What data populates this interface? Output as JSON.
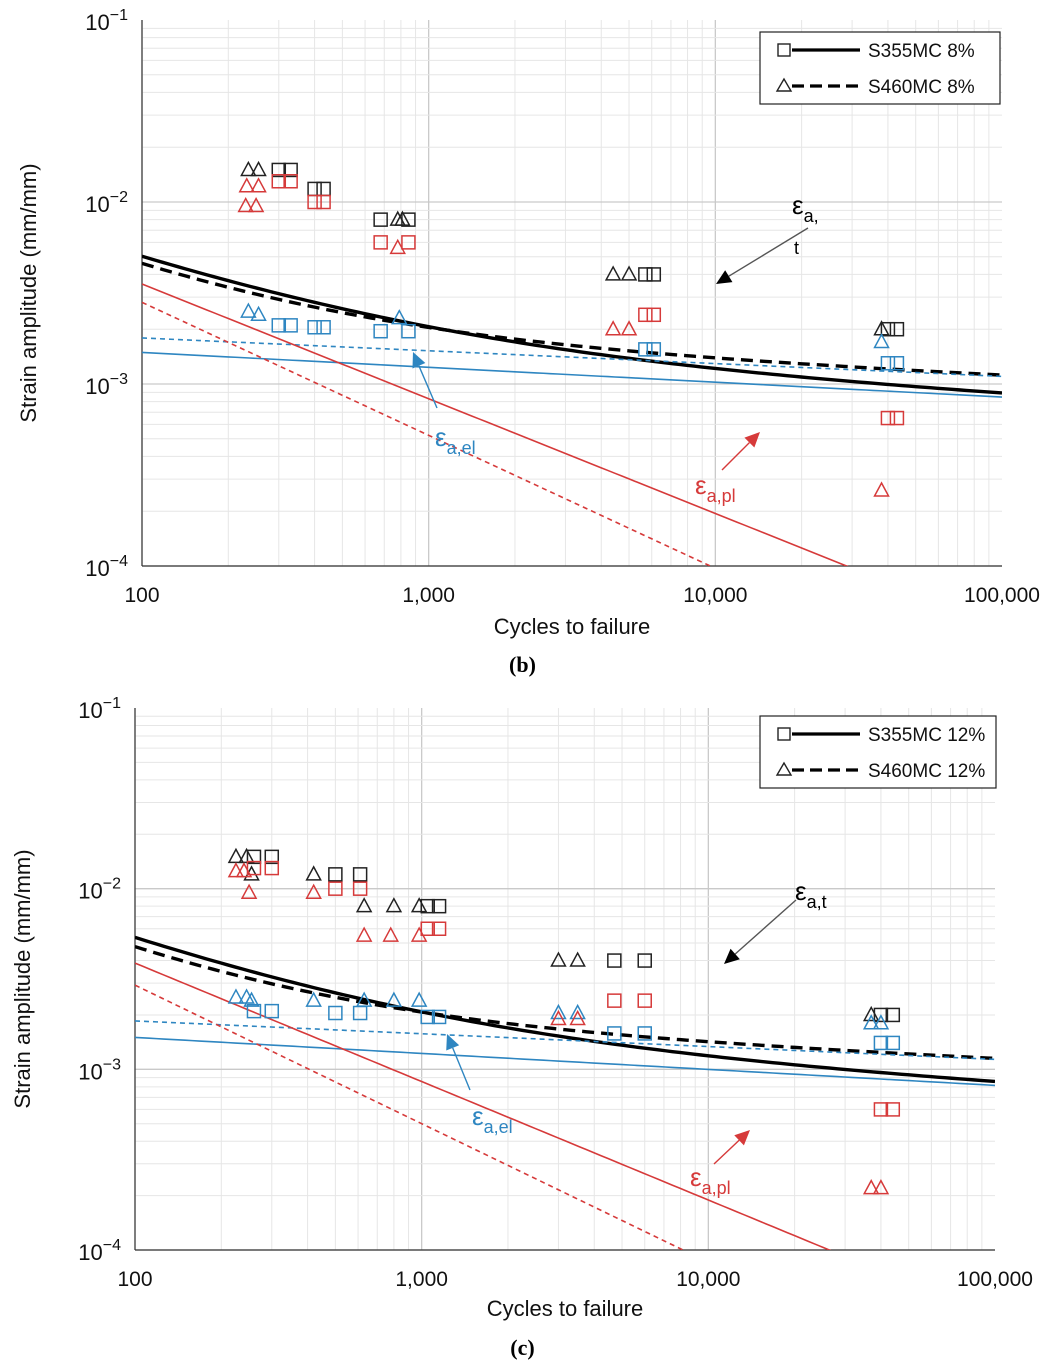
{
  "chart_data": [
    {
      "type": "scatter",
      "panel": "b",
      "caption": "(b)",
      "xlabel": "Cycles to failure",
      "ylabel": "Strain amplitude (mm/mm)",
      "xscale": "log",
      "yscale": "log",
      "xlim": [
        100,
        100000
      ],
      "ylim": [
        0.0001,
        0.1
      ],
      "x_ticks": [
        100,
        1000,
        10000,
        100000
      ],
      "x_tick_labels": [
        "100",
        "1,000",
        "10,000",
        "100,000"
      ],
      "y_ticks": [
        0.1,
        0.01,
        0.001,
        0.0001
      ],
      "y_tick_labels": [
        [
          "10",
          "−1"
        ],
        [
          "10",
          "−2"
        ],
        [
          "10",
          "−3"
        ],
        [
          "10",
          "−4"
        ]
      ],
      "grid": true,
      "legend_position": "top-right",
      "legend": [
        {
          "label": "S355MC 8%",
          "marker": "square",
          "line": "solid"
        },
        {
          "label": "S460MC 8%",
          "marker": "triangle",
          "line": "dashed"
        }
      ],
      "annotations": {
        "total": {
          "base": "ε",
          "sub": "a,",
          "sub2": "t"
        },
        "elastic": {
          "base": "ε",
          "sub": "a,el"
        },
        "plastic": {
          "base": "ε",
          "sub": "a,pl"
        }
      },
      "curves": [
        {
          "group": "total",
          "material": "S355MC 8%",
          "style": "solid",
          "color": "#000000",
          "sf": 0.0023,
          "b": -0.0818,
          "ef": 0.1,
          "c": -0.6304
        },
        {
          "group": "total",
          "material": "S460MC 8%",
          "style": "dashed",
          "color": "#000000",
          "sf": 0.0026,
          "b": -0.0704,
          "ef": 0.135,
          "c": -0.7308
        },
        {
          "group": "elastic",
          "material": "S355MC 8%",
          "style": "solid",
          "color": "#2e86c1",
          "sf": 0.0023,
          "b": -0.0818
        },
        {
          "group": "elastic",
          "material": "S460MC 8%",
          "style": "dashed",
          "color": "#2e86c1",
          "sf": 0.0026,
          "b": -0.0704
        },
        {
          "group": "plastic",
          "material": "S355MC 8%",
          "style": "solid",
          "color": "#d63a3a",
          "ef": 0.1,
          "c": -0.6304
        },
        {
          "group": "plastic",
          "material": "S460MC 8%",
          "style": "dashed",
          "color": "#d63a3a",
          "ef": 0.135,
          "c": -0.7308
        }
      ],
      "points": [
        {
          "group": "total",
          "material": "S355MC 8%",
          "marker": "square",
          "color": "#222222",
          "x": [
            300,
            330,
            400,
            430,
            680,
            850,
            5700,
            6100,
            40000,
            43000
          ],
          "y": [
            0.015,
            0.015,
            0.0118,
            0.0118,
            0.008,
            0.008,
            0.004,
            0.004,
            0.002,
            0.002
          ]
        },
        {
          "group": "total",
          "material": "S460MC 8%",
          "marker": "triangle",
          "color": "#222222",
          "x": [
            235,
            255,
            780,
            810,
            4400,
            5000,
            38000
          ],
          "y": [
            0.015,
            0.015,
            0.008,
            0.008,
            0.004,
            0.004,
            0.002
          ]
        },
        {
          "group": "elastic",
          "material": "S355MC 8%",
          "marker": "square",
          "color": "#2e86c1",
          "x": [
            300,
            330,
            400,
            430,
            680,
            850,
            5700,
            6100,
            40000,
            43000
          ],
          "y": [
            0.0021,
            0.0021,
            0.00205,
            0.00205,
            0.00195,
            0.00195,
            0.00155,
            0.00155,
            0.0013,
            0.0013
          ]
        },
        {
          "group": "elastic",
          "material": "S460MC 8%",
          "marker": "triangle",
          "color": "#2e86c1",
          "x": [
            235,
            255,
            790,
            38000
          ],
          "y": [
            0.0025,
            0.0024,
            0.0023,
            0.0017
          ]
        },
        {
          "group": "plastic",
          "material": "S355MC 8%",
          "marker": "square",
          "color": "#d63a3a",
          "x": [
            300,
            330,
            400,
            430,
            680,
            850,
            5700,
            6100,
            40000,
            43000
          ],
          "y": [
            0.013,
            0.013,
            0.01,
            0.01,
            0.006,
            0.006,
            0.0024,
            0.0024,
            0.00065,
            0.00065
          ]
        },
        {
          "group": "plastic",
          "material": "S460MC 8%",
          "marker": "triangle",
          "color": "#d63a3a",
          "x": [
            230,
            250,
            232,
            255,
            780,
            4400,
            5000,
            38000
          ],
          "y": [
            0.0095,
            0.0095,
            0.0122,
            0.0122,
            0.0056,
            0.002,
            0.002,
            0.00026
          ]
        }
      ]
    },
    {
      "type": "scatter",
      "panel": "c",
      "caption": "(c)",
      "xlabel": "Cycles to failure",
      "ylabel": "Strain amplitude (mm/mm)",
      "xscale": "log",
      "yscale": "log",
      "xlim": [
        100,
        100000
      ],
      "ylim": [
        0.0001,
        0.1
      ],
      "x_ticks": [
        100,
        1000,
        10000,
        100000
      ],
      "x_tick_labels": [
        "100",
        "1,000",
        "10,000",
        "100,000"
      ],
      "y_ticks": [
        0.1,
        0.01,
        0.001,
        0.0001
      ],
      "y_tick_labels": [
        [
          "10",
          "−1"
        ],
        [
          "10",
          "−2"
        ],
        [
          "10",
          "−3"
        ],
        [
          "10",
          "−4"
        ]
      ],
      "grid": true,
      "legend_position": "top-right",
      "legend": [
        {
          "label": "S355MC 12%",
          "marker": "square",
          "line": "solid"
        },
        {
          "label": "S460MC 12%",
          "marker": "triangle",
          "line": "dashed"
        }
      ],
      "annotations": {
        "total": {
          "base": "ε",
          "sub": "a,t",
          "sub2": ""
        },
        "elastic": {
          "base": "ε",
          "sub": "a,el"
        },
        "plastic": {
          "base": "ε",
          "sub": "a,pl"
        }
      },
      "curves": [
        {
          "group": "total",
          "material": "S355MC 12%",
          "style": "solid",
          "color": "#000000",
          "sf": 0.0024,
          "b": -0.0885,
          "ef": 0.125,
          "c": -0.6557
        },
        {
          "group": "total",
          "material": "S460MC 12%",
          "style": "dashed",
          "color": "#000000",
          "sf": 0.0027,
          "b": -0.071,
          "ef": 0.17,
          "c": -0.7668
        },
        {
          "group": "elastic",
          "material": "S355MC 12%",
          "style": "solid",
          "color": "#2e86c1",
          "sf": 0.0024,
          "b": -0.0885
        },
        {
          "group": "elastic",
          "material": "S460MC 12%",
          "style": "dashed",
          "color": "#2e86c1",
          "sf": 0.0027,
          "b": -0.071
        },
        {
          "group": "plastic",
          "material": "S355MC 12%",
          "style": "solid",
          "color": "#d63a3a",
          "ef": 0.125,
          "c": -0.6557
        },
        {
          "group": "plastic",
          "material": "S460MC 12%",
          "style": "dashed",
          "color": "#d63a3a",
          "ef": 0.17,
          "c": -0.7668
        }
      ],
      "points": [
        {
          "group": "total",
          "material": "S355MC 12%",
          "marker": "square",
          "color": "#222222",
          "x": [
            260,
            300,
            500,
            610,
            1050,
            1150,
            4700,
            6000,
            40000,
            44000
          ],
          "y": [
            0.015,
            0.015,
            0.012,
            0.012,
            0.008,
            0.008,
            0.004,
            0.004,
            0.002,
            0.002
          ]
        },
        {
          "group": "total",
          "material": "S460MC 12%",
          "marker": "triangle",
          "color": "#222222",
          "x": [
            225,
            245,
            255,
            420,
            630,
            800,
            980,
            3000,
            3500,
            37000
          ],
          "y": [
            0.015,
            0.015,
            0.012,
            0.012,
            0.008,
            0.008,
            0.008,
            0.004,
            0.004,
            0.002
          ]
        },
        {
          "group": "elastic",
          "material": "S355MC 12%",
          "marker": "square",
          "color": "#2e86c1",
          "x": [
            260,
            300,
            500,
            610,
            1050,
            1150,
            4700,
            6000,
            40000,
            44000
          ],
          "y": [
            0.0021,
            0.0021,
            0.00205,
            0.00205,
            0.00195,
            0.00195,
            0.00158,
            0.00158,
            0.0014,
            0.0014
          ]
        },
        {
          "group": "elastic",
          "material": "S460MC 12%",
          "marker": "triangle",
          "color": "#2e86c1",
          "x": [
            225,
            245,
            255,
            420,
            630,
            800,
            980,
            3000,
            3500,
            37000,
            40000
          ],
          "y": [
            0.0025,
            0.0025,
            0.0024,
            0.0024,
            0.0024,
            0.0024,
            0.0024,
            0.00205,
            0.00205,
            0.0018,
            0.0018
          ]
        },
        {
          "group": "plastic",
          "material": "S355MC 12%",
          "marker": "square",
          "color": "#d63a3a",
          "x": [
            260,
            300,
            500,
            610,
            1050,
            1150,
            4700,
            6000,
            40000,
            44000
          ],
          "y": [
            0.013,
            0.013,
            0.01,
            0.01,
            0.006,
            0.006,
            0.0024,
            0.0024,
            0.0006,
            0.0006
          ]
        },
        {
          "group": "plastic",
          "material": "S460MC 12%",
          "marker": "triangle",
          "color": "#d63a3a",
          "x": [
            225,
            240,
            250,
            420,
            630,
            780,
            980,
            3000,
            3500,
            37000,
            40000
          ],
          "y": [
            0.0125,
            0.0125,
            0.0095,
            0.0095,
            0.0055,
            0.0055,
            0.0055,
            0.0019,
            0.0019,
            0.00022,
            0.00022
          ]
        }
      ]
    }
  ]
}
